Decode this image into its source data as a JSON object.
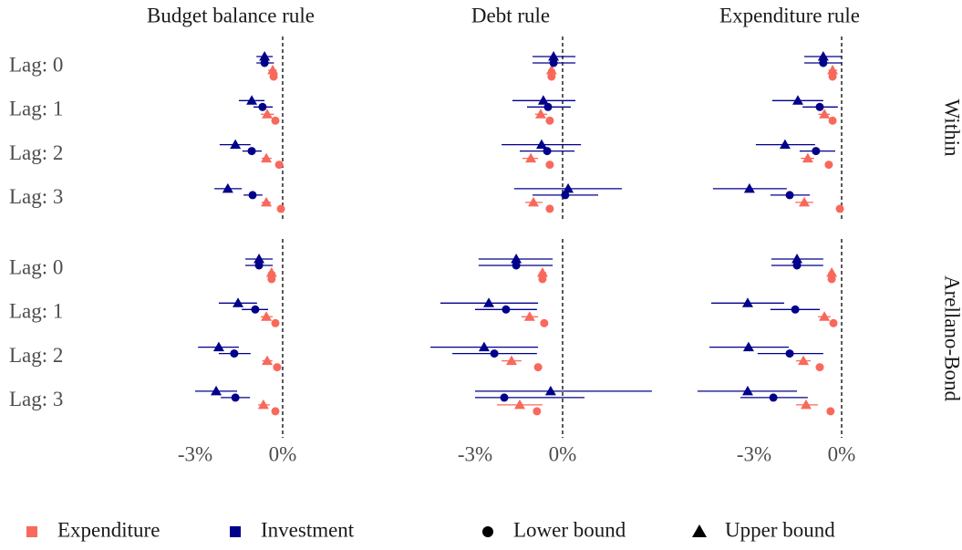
{
  "chart_data": {
    "type": "dot",
    "column_titles": [
      "Budget balance rule",
      "Debt rule",
      "Expenditure rule"
    ],
    "row_titles": [
      "Within",
      "Arellano-Bond"
    ],
    "categories": [
      "Lag: 0",
      "Lag: 1",
      "Lag: 2",
      "Lag: 3"
    ],
    "xlim": [
      -5.5,
      3.25
    ],
    "xticks": [
      {
        "value": -3,
        "label": "-3%"
      },
      {
        "value": 0,
        "label": "0%"
      }
    ],
    "reference_line": 0,
    "shapes": [
      {
        "name": "Lower bound",
        "shape": "circle"
      },
      {
        "name": "Upper bound",
        "shape": "triangle"
      }
    ],
    "series": [
      {
        "name": "Expenditure",
        "color": "#f8695b",
        "bounds": [
          [
            [
              [
                -0.31,
                -0.35,
                -0.27
              ],
              [
                -0.25,
                -0.3,
                -0.2
              ],
              [
                -0.12,
                -0.16,
                -0.08
              ],
              [
                -0.06,
                -0.1,
                -0.02
              ]
            ],
            [
              [
                -0.38,
                -0.45,
                -0.31
              ],
              [
                -0.44,
                -0.5,
                -0.38
              ],
              [
                -0.44,
                -0.5,
                -0.38
              ],
              [
                -0.44,
                -0.5,
                -0.38
              ]
            ],
            [
              [
                -0.31,
                -0.37,
                -0.25
              ],
              [
                -0.31,
                -0.37,
                -0.25
              ],
              [
                -0.44,
                -0.52,
                -0.36
              ],
              [
                -0.06,
                -0.1,
                -0.02
              ]
            ],
            [
              [
                -0.38,
                -0.45,
                -0.3
              ],
              [
                -0.25,
                -0.3,
                -0.2
              ],
              [
                -0.19,
                -0.24,
                -0.14
              ],
              [
                -0.25,
                -0.3,
                -0.2
              ]
            ],
            [
              [
                -0.69,
                -0.78,
                -0.6
              ],
              [
                -0.63,
                -0.72,
                -0.54
              ],
              [
                -0.84,
                -0.97,
                -0.72
              ],
              [
                -0.88,
                -1.0,
                -0.75
              ]
            ],
            [
              [
                -0.34,
                -0.4,
                -0.28
              ],
              [
                -0.28,
                -0.34,
                -0.22
              ],
              [
                -0.75,
                -0.84,
                -0.66
              ],
              [
                -0.38,
                -0.44,
                -0.32
              ]
            ]
          ],
          [
            [
              [
                -0.34,
                -0.5,
                -0.2
              ],
              [
                -0.53,
                -0.75,
                -0.3
              ],
              [
                -0.56,
                -0.72,
                -0.38
              ],
              [
                -0.56,
                -0.72,
                -0.4
              ]
            ],
            [
              [
                -0.38,
                -0.5,
                -0.25
              ],
              [
                -0.75,
                -0.94,
                -0.53
              ],
              [
                -1.09,
                -1.38,
                -0.84
              ],
              [
                -1.0,
                -1.28,
                -0.69
              ]
            ],
            [
              [
                -0.31,
                -0.45,
                -0.15
              ],
              [
                -0.59,
                -0.8,
                -0.4
              ],
              [
                -1.16,
                -1.4,
                -0.94
              ],
              [
                -1.28,
                -1.59,
                -0.97
              ]
            ],
            [
              [
                -0.38,
                -0.5,
                -0.25
              ],
              [
                -0.56,
                -0.75,
                -0.34
              ],
              [
                -0.53,
                -0.7,
                -0.35
              ],
              [
                -0.66,
                -0.84,
                -0.44
              ]
            ],
            [
              [
                -0.69,
                -0.8,
                -0.56
              ],
              [
                -1.13,
                -1.41,
                -0.84
              ],
              [
                -1.75,
                -2.09,
                -1.41
              ],
              [
                -1.47,
                -2.25,
                -0.69
              ]
            ],
            [
              [
                -0.34,
                -0.45,
                -0.25
              ],
              [
                -0.59,
                -0.81,
                -0.38
              ],
              [
                -1.31,
                -1.56,
                -1.06
              ],
              [
                -1.22,
                -1.56,
                -0.81
              ]
            ]
          ]
        ]
      },
      {
        "name": "Investment",
        "color": "#00008b",
        "bounds": [
          [
            [
              [
                -0.62,
                -0.9,
                -0.3
              ],
              [
                -0.69,
                -1.0,
                -0.34
              ],
              [
                -1.06,
                -1.38,
                -0.72
              ],
              [
                -1.03,
                -1.34,
                -0.69
              ]
            ],
            [
              [
                -0.31,
                -1.03,
                0.44
              ],
              [
                -0.5,
                -1.22,
                0.28
              ],
              [
                -0.53,
                -1.47,
                0.41
              ],
              [
                0.09,
                -1.03,
                1.22
              ]
            ],
            [
              [
                -0.63,
                -1.28,
                0
              ],
              [
                -0.75,
                -1.34,
                -0.13
              ],
              [
                -0.88,
                -1.44,
                -0.22
              ],
              [
                -1.78,
                -2.44,
                -1.09
              ]
            ],
            [
              [
                -0.81,
                -1.28,
                -0.34
              ],
              [
                -0.94,
                -1.4,
                -0.5
              ],
              [
                -1.66,
                -2.19,
                -1.1
              ],
              [
                -1.62,
                -2.12,
                -1.12
              ]
            ],
            [
              [
                -1.59,
                -2.88,
                -0.34
              ],
              [
                -1.94,
                -3.0,
                -0.88
              ],
              [
                -2.34,
                -3.78,
                -0.88
              ],
              [
                -2.0,
                -3.0,
                0.75
              ]
            ],
            [
              [
                -1.53,
                -2.41,
                -0.63
              ],
              [
                -1.59,
                -2.44,
                -0.75
              ],
              [
                -1.78,
                -2.88,
                -0.63
              ],
              [
                -2.34,
                -3.47,
                -1.16
              ]
            ]
          ],
          [
            [
              [
                -0.62,
                -0.9,
                -0.34
              ],
              [
                -1.06,
                -1.5,
                -0.62
              ],
              [
                -1.62,
                -2.16,
                -1.1
              ],
              [
                -1.88,
                -2.34,
                -1.4
              ]
            ],
            [
              [
                -0.31,
                -1.03,
                0.44
              ],
              [
                -0.66,
                -1.72,
                0.44
              ],
              [
                -0.72,
                -2.09,
                0.63
              ],
              [
                0.19,
                -1.66,
                2.03
              ]
            ],
            [
              [
                -0.63,
                -1.28,
                0
              ],
              [
                -1.5,
                -2.38,
                -0.63
              ],
              [
                -1.94,
                -2.94,
                -0.91
              ],
              [
                -3.16,
                -4.41,
                -1.88
              ]
            ],
            [
              [
                -0.81,
                -1.28,
                -0.34
              ],
              [
                -1.53,
                -2.19,
                -0.88
              ],
              [
                -2.19,
                -2.9,
                -1.5
              ],
              [
                -2.28,
                -3.0,
                -1.56
              ]
            ],
            [
              [
                -1.59,
                -2.88,
                -0.34
              ],
              [
                -2.53,
                -4.19,
                -0.84
              ],
              [
                -2.69,
                -4.53,
                -0.84
              ],
              [
                -0.41,
                -3.0,
                3.06
              ]
            ],
            [
              [
                -1.53,
                -2.41,
                -0.63
              ],
              [
                -3.22,
                -4.47,
                -1.97
              ],
              [
                -3.19,
                -4.53,
                -1.81
              ],
              [
                -3.22,
                -4.94,
                -1.53
              ]
            ]
          ]
        ]
      }
    ]
  }
}
